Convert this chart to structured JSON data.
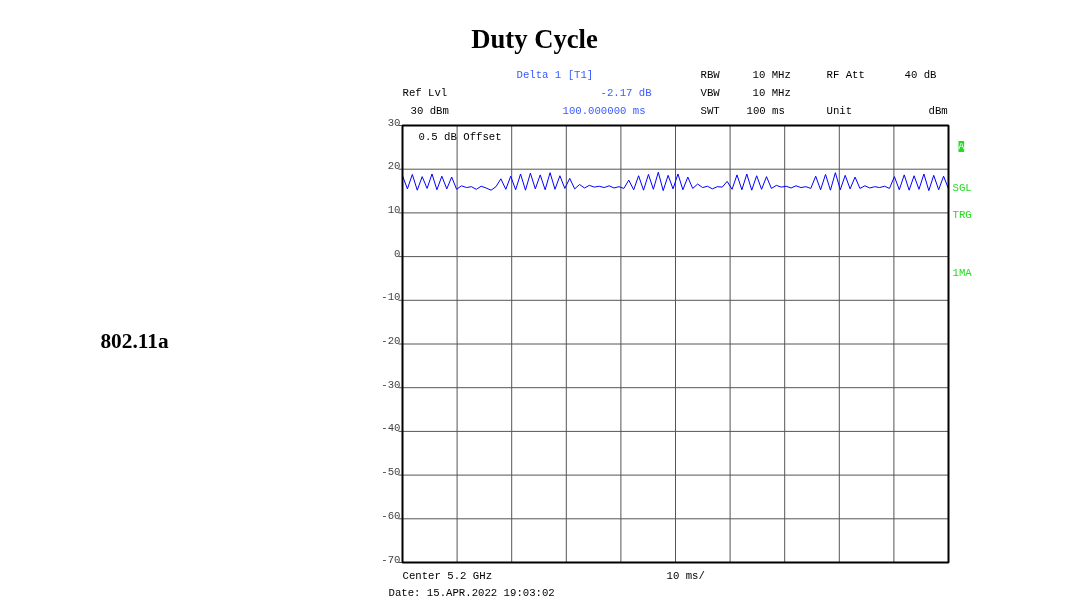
{
  "chart_data": {
    "type": "line",
    "title": "Duty Cycle",
    "subtitle": "802.11a",
    "categories": [
      null,
      null,
      null,
      null,
      null,
      null,
      null,
      null,
      null,
      null,
      null,
      null,
      null,
      null,
      null,
      null,
      null,
      null,
      null,
      null,
      null,
      null,
      null,
      null,
      null,
      null,
      null,
      null,
      null,
      null,
      null,
      null,
      null,
      null,
      null,
      null,
      null,
      null,
      null,
      null,
      null,
      null,
      null,
      null,
      null,
      null,
      null,
      null,
      null,
      null,
      null,
      null,
      null,
      null,
      null,
      null,
      null,
      null,
      null,
      null,
      null,
      null,
      null,
      null,
      null,
      null,
      null,
      null,
      null,
      null,
      null,
      null,
      null,
      null,
      null,
      null,
      null,
      null,
      null,
      null,
      null,
      null,
      null,
      null,
      null,
      null,
      null,
      null,
      null,
      null,
      null,
      null,
      null,
      null,
      null,
      null,
      null,
      null,
      null,
      null,
      null,
      null,
      null,
      null,
      null,
      null,
      null,
      null,
      null,
      null,
      null,
      null
    ],
    "series": [
      {
        "color": "#0000ff",
        "values": [
          18.5,
          15.5,
          18.8,
          15.2,
          18.3,
          15.6,
          18.9,
          15.3,
          18.4,
          15.5,
          18.2,
          15.4,
          16.2,
          15.8,
          16.0,
          15.4,
          16.1,
          15.7,
          15.2,
          16.0,
          17.8,
          15.4,
          18.4,
          15.3,
          18.9,
          15.2,
          19.1,
          15.5,
          18.7,
          15.3,
          19.2,
          15.4,
          18.5,
          15.6,
          17.9,
          15.5,
          16.5,
          15.7,
          16.3,
          15.9,
          16.1,
          15.8,
          16.2,
          15.7,
          16.0,
          15.6,
          17.5,
          15.3,
          18.5,
          15.2,
          18.8,
          15.4,
          19.3,
          15.1,
          18.6,
          15.5,
          18.9,
          15.3,
          18.2,
          15.6,
          16.6,
          15.8,
          16.1,
          15.5,
          16.0,
          15.9,
          17.2,
          15.4,
          18.7,
          15.3,
          18.9,
          15.2,
          18.5,
          15.4,
          18.3,
          15.6,
          16.3,
          15.9,
          16.1,
          15.7,
          16.2,
          15.8,
          16.0,
          15.6,
          18.4,
          15.3,
          18.8,
          15.2,
          19.2,
          15.3,
          18.6,
          15.5,
          18.2,
          15.6,
          16.2,
          15.7,
          16.0,
          15.8,
          16.1,
          15.6,
          18.3,
          15.3,
          18.7,
          15.2,
          18.5,
          15.4,
          18.9,
          15.1,
          18.6,
          15.3,
          18.4,
          15.5
        ]
      }
    ],
    "ylim": [
      -70,
      30
    ],
    "yticks": [
      -70,
      -60,
      -50,
      -40,
      -30,
      -20,
      -10,
      0,
      10,
      20,
      30
    ],
    "grid": true,
    "tick_labels": "y",
    "annotations": [
      "Delta 1 [T1]",
      "Ref Lvl",
      "-2.17 dB",
      "30 dBm",
      "100.000000 ms",
      "RBW",
      "10 MHz",
      "RF Att",
      "40 dB",
      "VBW",
      "10 MHz",
      "SWT",
      "100 ms",
      "Unit",
      "dBm",
      "0.5 dB Offset",
      "A",
      "SGL",
      "TRG",
      "1MA",
      "Center 5.2 GHz",
      "10 ms/",
      "Date:      15.APR.2022  19:03:02"
    ]
  }
}
